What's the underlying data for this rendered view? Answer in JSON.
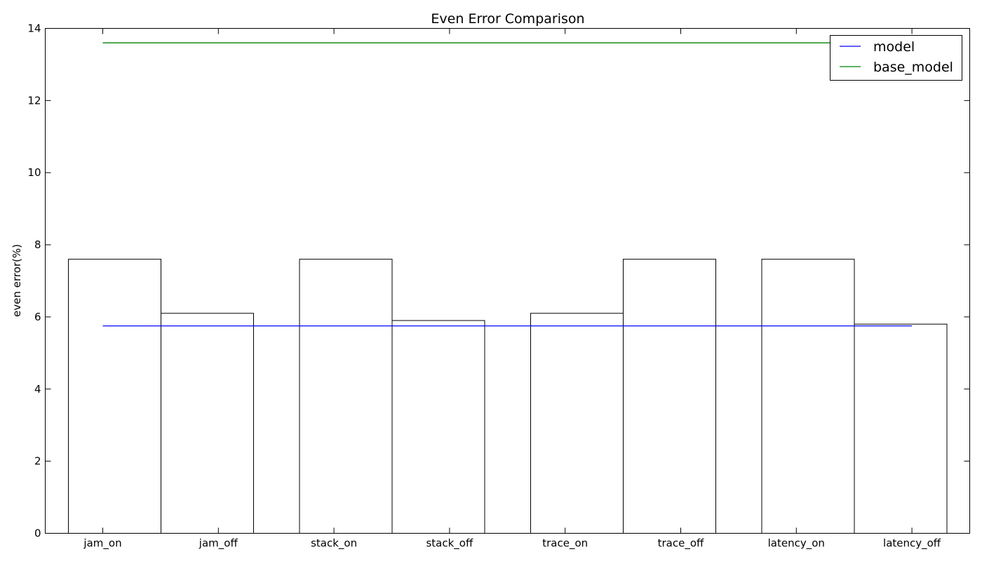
{
  "chart_data": {
    "type": "bar",
    "title": "Even Error Comparison",
    "xlabel": "",
    "ylabel": "even error(%)",
    "ylim": [
      0,
      14
    ],
    "yticks": [
      0,
      2,
      4,
      6,
      8,
      10,
      12,
      14
    ],
    "grid": false,
    "categories": [
      "jam_on",
      "jam_off",
      "stack_on",
      "stack_off",
      "trace_on",
      "trace_off",
      "latency_on",
      "latency_off"
    ],
    "values": [
      7.6,
      6.1,
      7.6,
      5.9,
      6.1,
      7.6,
      7.6,
      5.8
    ],
    "bar_fill": "#ffffff",
    "bar_edge": "#000000",
    "lines": [
      {
        "name": "model",
        "value": 5.75,
        "color": "#0000ff"
      },
      {
        "name": "base_model",
        "value": 13.6,
        "color": "#008000"
      }
    ],
    "legend_position": "top-right"
  }
}
